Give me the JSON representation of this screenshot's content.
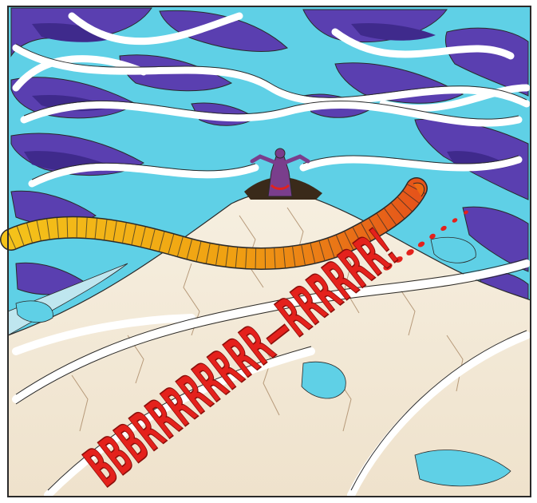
{
  "artwork": {
    "sound_effect": "BBBRRRRRRRR—RRRRRR!",
    "palette": {
      "sky_cyan": "#5fd0e6",
      "storm_purple": "#5a3fb0",
      "deep_purple": "#3f2a8c",
      "ground_cream": "#f4ead8",
      "crack_brown": "#b79a7a",
      "serpent_yellow": "#f2b614",
      "serpent_orange": "#ee6a12",
      "sfx_red": "#e4211c",
      "figure_violet": "#7a3e8c",
      "outline": "#2a2a2a",
      "frame": "#ffffff"
    }
  }
}
